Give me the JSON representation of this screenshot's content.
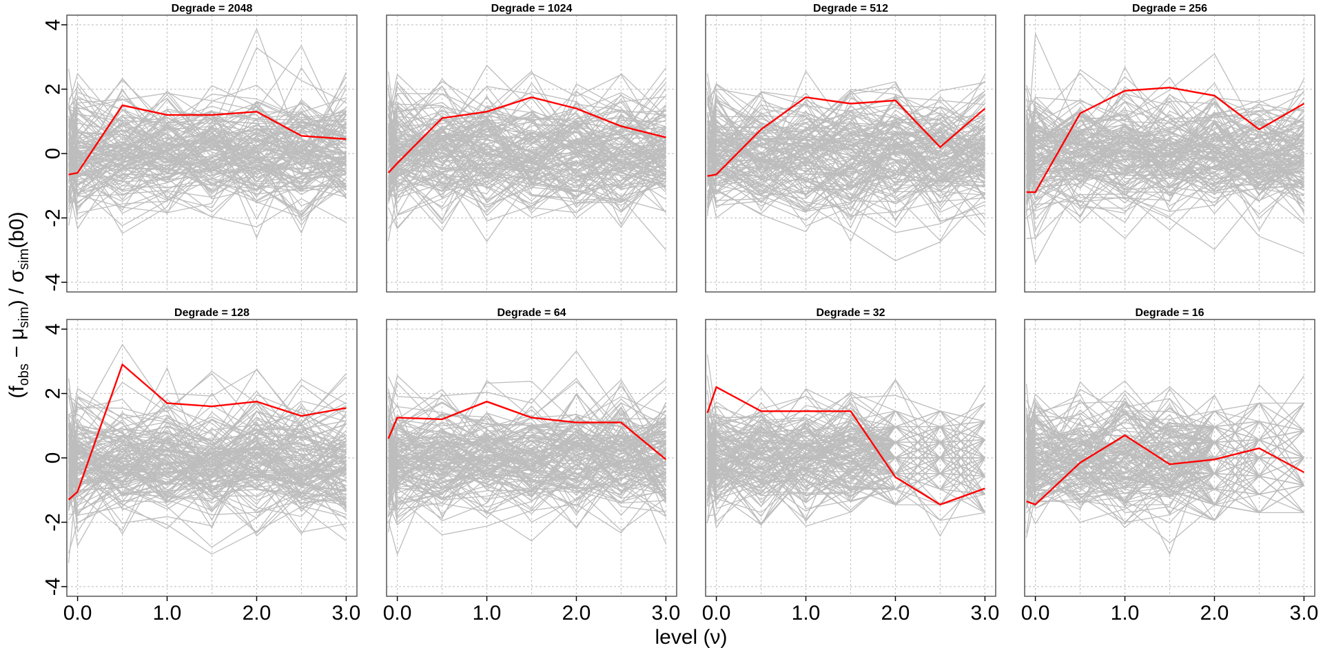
{
  "chart_data": {
    "type": "line",
    "x": [
      -0.1,
      0.0,
      0.5,
      1.0,
      1.5,
      2.0,
      2.5,
      3.0
    ],
    "xlabel": "level (ν)",
    "ylabel_parts": [
      "(f",
      "obs",
      " − μ",
      "sim",
      ") / σ",
      "sim",
      "(b0)"
    ],
    "xticks": [
      0.0,
      1.0,
      2.0,
      3.0
    ],
    "xtick_labels": [
      "0.0",
      "1.0",
      "2.0",
      "3.0"
    ],
    "yticks": [
      -4,
      -2,
      0,
      2,
      4
    ],
    "ytick_labels": [
      "-4",
      "-2",
      "0",
      "2",
      "4"
    ],
    "xlim": [
      -0.12,
      3.12
    ],
    "ylim": [
      -4.3,
      4.3
    ],
    "grid": true,
    "colors": {
      "observed": "#ff0000",
      "simulated": "#bdbdbd",
      "grid": "#c8c8c8",
      "frame": "#555555"
    },
    "panels": [
      {
        "title": "Degrade = 2048",
        "observed": [
          -0.65,
          -0.6,
          1.5,
          1.2,
          1.2,
          1.3,
          0.55,
          0.45
        ]
      },
      {
        "title": "Degrade = 1024",
        "observed": [
          -0.6,
          -0.3,
          1.1,
          1.3,
          1.75,
          1.4,
          0.85,
          0.5
        ]
      },
      {
        "title": "Degrade = 512",
        "observed": [
          -0.7,
          -0.65,
          0.75,
          1.75,
          1.55,
          1.65,
          0.2,
          1.4
        ]
      },
      {
        "title": "Degrade = 256",
        "observed": [
          -1.2,
          -1.2,
          1.25,
          1.95,
          2.05,
          1.8,
          0.75,
          1.55
        ]
      },
      {
        "title": "Degrade = 128",
        "observed": [
          -1.3,
          -1.05,
          2.9,
          1.7,
          1.6,
          1.75,
          1.3,
          1.55
        ]
      },
      {
        "title": "Degrade = 64",
        "observed": [
          0.6,
          1.25,
          1.2,
          1.75,
          1.25,
          1.1,
          1.1,
          -0.05
        ]
      },
      {
        "title": "Degrade = 32",
        "observed": [
          1.4,
          2.2,
          1.45,
          1.45,
          1.45,
          -0.6,
          -1.45,
          -0.95
        ]
      },
      {
        "title": "Degrade = 16",
        "observed": [
          -1.35,
          -1.45,
          -0.15,
          0.7,
          -0.2,
          -0.05,
          0.3,
          -0.45
        ]
      }
    ]
  }
}
